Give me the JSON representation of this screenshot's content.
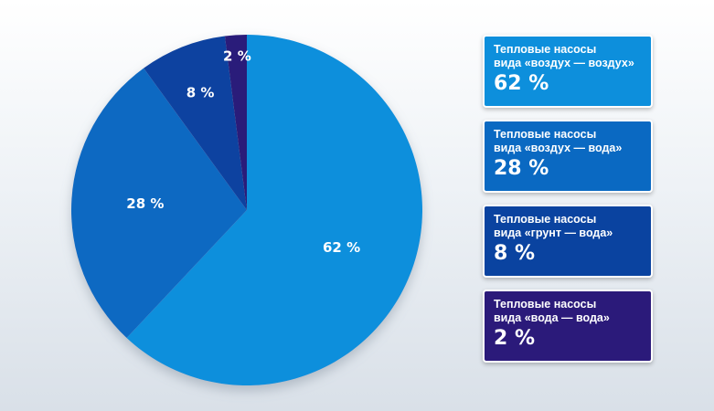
{
  "chart_data": {
    "type": "pie",
    "slices": [
      {
        "label": "Тепловые насосы вида «воздух — воздух»",
        "value": 62,
        "value_label": "62 %",
        "color": "#0d8fdc"
      },
      {
        "label": "Тепловые насосы вида «воздух — вода»",
        "value": 28,
        "value_label": "28 %",
        "color": "#0a69c2"
      },
      {
        "label": "Тепловые насосы вида «грунт — вода»",
        "value": 8,
        "value_label": "8 %",
        "color": "#0a43a0"
      },
      {
        "label": "Тепловые насосы вида «вода — вода»",
        "value": 2,
        "value_label": "2 %",
        "color": "#2b1a7a"
      }
    ]
  },
  "legend": [
    {
      "line1": "Тепловые насосы",
      "line2": "вида «воздух — воздух»",
      "value": "62 %"
    },
    {
      "line1": "Тепловые насосы",
      "line2": "вида «воздух — вода»",
      "value": "28 %"
    },
    {
      "line1": "Тепловые насосы",
      "line2": "вида «грунт — вода»",
      "value": "8 %"
    },
    {
      "line1": "Тепловые насосы",
      "line2": "вида «вода — вода»",
      "value": "2 %"
    }
  ]
}
